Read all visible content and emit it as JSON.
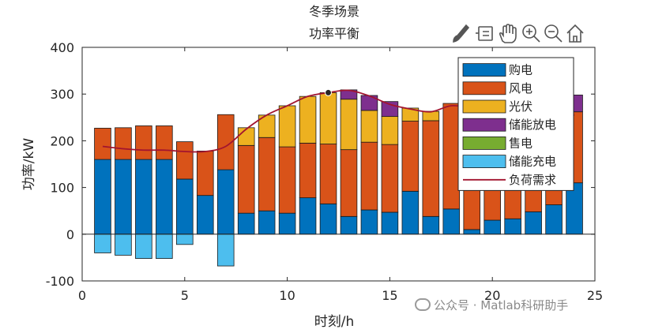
{
  "chart_data": {
    "type": "bar",
    "stacked": true,
    "title_lines": [
      "冬季场景",
      "功率平衡"
    ],
    "xlabel": "时刻/h",
    "ylabel": "功率/kW",
    "xlim": [
      0,
      25
    ],
    "ylim": [
      -100,
      400
    ],
    "xticks": [
      0,
      5,
      10,
      15,
      20,
      25
    ],
    "yticks": [
      -100,
      0,
      100,
      200,
      300,
      400
    ],
    "x": [
      1,
      2,
      3,
      4,
      5,
      6,
      7,
      8,
      9,
      10,
      11,
      12,
      13,
      14,
      15,
      16,
      17,
      18,
      19,
      20,
      21,
      22,
      23,
      24
    ],
    "series": [
      {
        "name": "购电",
        "color": "#0072BD",
        "values": [
          160,
          160,
          160,
          160,
          118,
          83,
          138,
          45,
          50,
          45,
          78,
          65,
          38,
          52,
          47,
          92,
          38,
          54,
          10,
          30,
          33,
          48,
          63,
          110
        ]
      },
      {
        "name": "风电",
        "color": "#D95319",
        "values": [
          67,
          68,
          72,
          72,
          80,
          95,
          118,
          145,
          157,
          142,
          117,
          128,
          143,
          145,
          145,
          150,
          205,
          226,
          240,
          222,
          210,
          196,
          178,
          152
        ]
      },
      {
        "name": "光伏",
        "color": "#EDB120",
        "values": [
          0,
          0,
          0,
          0,
          0,
          0,
          0,
          38,
          48,
          88,
          100,
          110,
          108,
          68,
          60,
          28,
          20,
          0,
          0,
          0,
          0,
          0,
          0,
          0
        ]
      },
      {
        "name": "储能放电",
        "color": "#7E2F8E",
        "values": [
          0,
          0,
          0,
          0,
          0,
          0,
          0,
          0,
          0,
          0,
          0,
          0,
          20,
          32,
          32,
          0,
          0,
          0,
          30,
          26,
          23,
          32,
          32,
          36
        ]
      },
      {
        "name": "售电",
        "color": "#77AC30",
        "values": [
          0,
          0,
          0,
          0,
          0,
          0,
          0,
          0,
          0,
          0,
          0,
          0,
          0,
          0,
          0,
          0,
          0,
          0,
          0,
          0,
          0,
          0,
          0,
          0
        ]
      },
      {
        "name": "储能充电",
        "color": "#4DBEEE",
        "values": [
          -40,
          -45,
          -52,
          -52,
          -22,
          0,
          -68,
          0,
          0,
          0,
          0,
          0,
          0,
          0,
          0,
          0,
          0,
          0,
          0,
          0,
          0,
          0,
          0,
          0
        ]
      }
    ],
    "demand": {
      "name": "负荷需求",
      "color": "#A2142F",
      "values": [
        188,
        183,
        180,
        180,
        177,
        177,
        188,
        225,
        255,
        275,
        295,
        303,
        308,
        296,
        278,
        268,
        262,
        275,
        270,
        265,
        272,
        260,
        258,
        255
      ]
    },
    "marker": {
      "x": 12,
      "y": 303
    },
    "legend_position": "top-right",
    "grid": false
  },
  "toolbar": {
    "icons": [
      "brush-icon",
      "data-tip-icon",
      "pan-icon",
      "zoom-in-icon",
      "zoom-out-icon",
      "home-icon"
    ]
  },
  "watermark": {
    "text": "公众号 · Matlab科研助手"
  }
}
